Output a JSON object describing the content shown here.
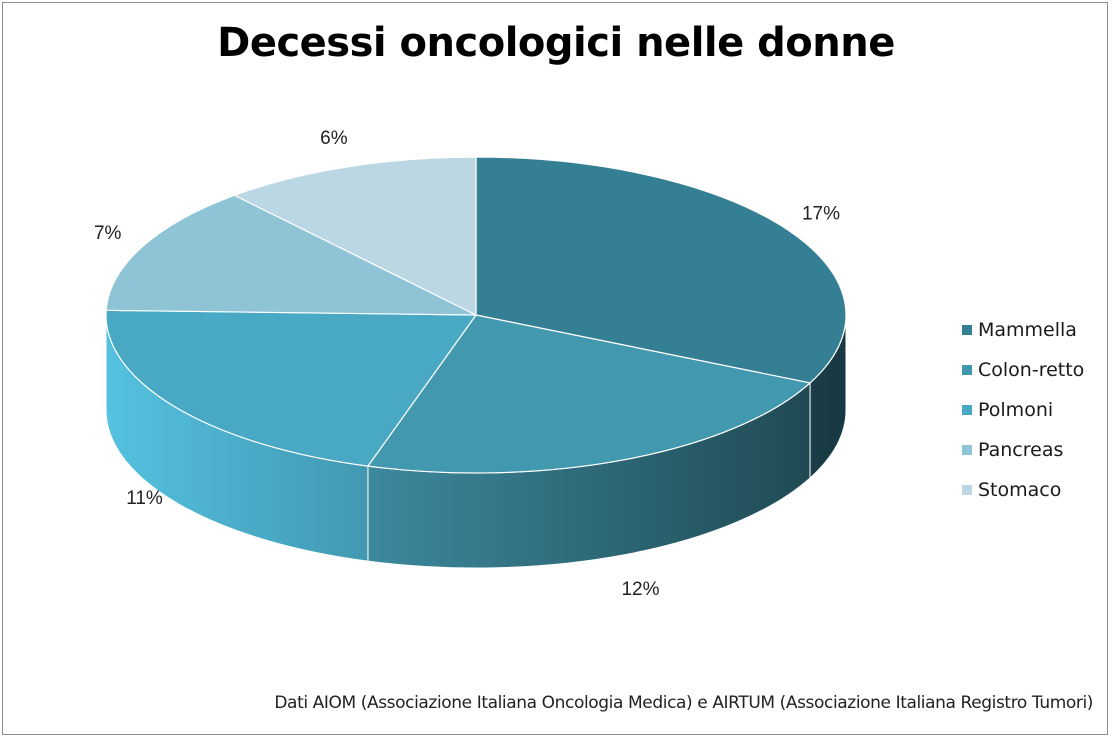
{
  "chart_data": {
    "type": "pie",
    "title": "Decessi oncologici nelle donne",
    "categories": [
      "Mammella",
      "Colon-retto",
      "Polmoni",
      "Pancreas",
      "Stomaco"
    ],
    "values": [
      17,
      12,
      11,
      7,
      6
    ],
    "labels": [
      "17%",
      "12%",
      "11%",
      "7%",
      "6%"
    ],
    "colors": [
      "#357f94",
      "#4298ae",
      "#49a9c4",
      "#8ec4d6",
      "#bad7e3"
    ],
    "legend_position": "right",
    "three_d": true
  },
  "source_note": "Dati AIOM (Associazione Italiana Oncologia Medica) e AIRTUM (Associazione Italiana Registro Tumori)"
}
